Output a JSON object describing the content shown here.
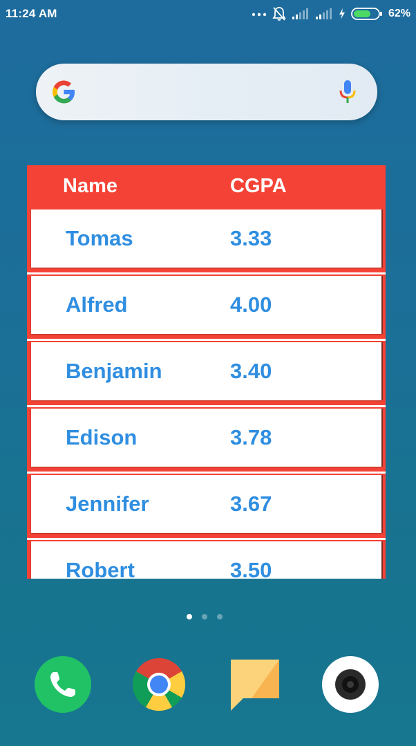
{
  "status_bar": {
    "time": "11:24 AM",
    "battery_percent": "62%",
    "icons": [
      "more-dots-icon",
      "silent-bell-icon",
      "signal-icon",
      "signal-icon",
      "charging-icon",
      "battery-icon"
    ]
  },
  "search_bar": {
    "logo": "google-g-icon",
    "mic": "microphone-icon"
  },
  "table": {
    "header": {
      "name": "Name",
      "cgpa": "CGPA"
    },
    "rows": [
      {
        "name": "Tomas",
        "cgpa": "3.33"
      },
      {
        "name": "Alfred",
        "cgpa": "4.00"
      },
      {
        "name": "Benjamin",
        "cgpa": "3.40"
      },
      {
        "name": "Edison",
        "cgpa": "3.78"
      },
      {
        "name": "Jennifer",
        "cgpa": "3.67"
      },
      {
        "name": "Robert",
        "cgpa": "3.50"
      }
    ],
    "colors": {
      "header_bg": "#f44336",
      "text": "#2f8ee0"
    }
  },
  "page_indicator": {
    "count": 3,
    "active_index": 0
  },
  "dock": {
    "apps": [
      "phone-icon",
      "chrome-icon",
      "notes-icon",
      "camera-icon"
    ]
  }
}
